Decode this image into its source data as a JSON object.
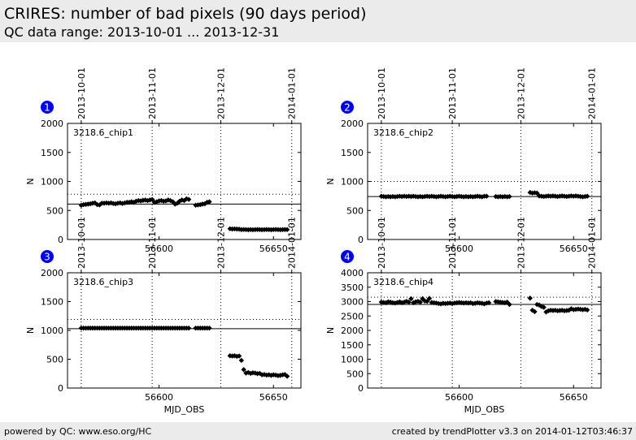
{
  "header": {
    "title": "CRIRES: number of bad pixels (90 days period)",
    "subtitle": "QC data range: 2013-10-01 ... 2013-12-31"
  },
  "footer": {
    "left": "powered by QC: www.eso.org/HC",
    "right": "created by trendPlotter v3.3 on 2014-01-12T03:46:37"
  },
  "colors": {
    "header_bg": "#ebebeb",
    "marker": "#000000",
    "panel_badge": "#0000ff"
  },
  "top_axis": {
    "labels": [
      "2013-10-01",
      "2013-11-01",
      "2013-12-01",
      "2014-01-01"
    ],
    "mjd": [
      56566,
      56597,
      56627,
      56658
    ]
  },
  "chart_data": [
    {
      "type": "scatter",
      "panel": "1",
      "label": "3218.6_chip1",
      "xlabel": "",
      "ylabel": "N",
      "xlim": [
        56560,
        56662
      ],
      "ylim": [
        0,
        2000
      ],
      "yticks": [
        0,
        500,
        1000,
        1500,
        2000
      ],
      "xticks": [
        56600,
        56650
      ],
      "reference_line": 610,
      "threshold_line": 780,
      "date_lines": [
        56566,
        56597,
        56627,
        56658
      ],
      "points": [
        [
          56566,
          590
        ],
        [
          56567,
          600
        ],
        [
          56568,
          605
        ],
        [
          56569,
          610
        ],
        [
          56570,
          615
        ],
        [
          56571,
          625
        ],
        [
          56572,
          630
        ],
        [
          56573,
          600
        ],
        [
          56574,
          595
        ],
        [
          56575,
          625
        ],
        [
          56576,
          625
        ],
        [
          56577,
          630
        ],
        [
          56578,
          625
        ],
        [
          56579,
          630
        ],
        [
          56580,
          620
        ],
        [
          56581,
          615
        ],
        [
          56582,
          625
        ],
        [
          56583,
          630
        ],
        [
          56584,
          620
        ],
        [
          56585,
          630
        ],
        [
          56586,
          640
        ],
        [
          56587,
          640
        ],
        [
          56588,
          650
        ],
        [
          56589,
          640
        ],
        [
          56590,
          660
        ],
        [
          56591,
          670
        ],
        [
          56592,
          665
        ],
        [
          56593,
          675
        ],
        [
          56594,
          680
        ],
        [
          56595,
          670
        ],
        [
          56596,
          680
        ],
        [
          56597,
          690
        ],
        [
          56598,
          640
        ],
        [
          56599,
          650
        ],
        [
          56600,
          665
        ],
        [
          56601,
          670
        ],
        [
          56602,
          660
        ],
        [
          56603,
          665
        ],
        [
          56604,
          680
        ],
        [
          56605,
          670
        ],
        [
          56606,
          650
        ],
        [
          56607,
          610
        ],
        [
          56608,
          625
        ],
        [
          56609,
          660
        ],
        [
          56610,
          680
        ],
        [
          56611,
          670
        ],
        [
          56612,
          700
        ],
        [
          56613,
          690
        ],
        [
          56616,
          590
        ],
        [
          56617,
          595
        ],
        [
          56618,
          600
        ],
        [
          56619,
          610
        ],
        [
          56620,
          615
        ],
        [
          56621,
          640
        ],
        [
          56622,
          650
        ],
        [
          56631,
          185
        ],
        [
          56632,
          180
        ],
        [
          56633,
          182
        ],
        [
          56634,
          180
        ],
        [
          56635,
          178
        ],
        [
          56636,
          170
        ],
        [
          56637,
          172
        ],
        [
          56638,
          170
        ],
        [
          56639,
          168
        ],
        [
          56640,
          170
        ],
        [
          56641,
          168
        ],
        [
          56642,
          170
        ],
        [
          56643,
          172
        ],
        [
          56644,
          170
        ],
        [
          56645,
          168
        ],
        [
          56646,
          170
        ],
        [
          56647,
          172
        ],
        [
          56648,
          170
        ],
        [
          56649,
          168
        ],
        [
          56650,
          170
        ],
        [
          56651,
          172
        ],
        [
          56652,
          170
        ],
        [
          56653,
          168
        ],
        [
          56654,
          170
        ],
        [
          56655,
          172
        ],
        [
          56656,
          170
        ]
      ]
    },
    {
      "type": "scatter",
      "panel": "2",
      "label": "3218.6_chip2",
      "xlabel": "",
      "ylabel": "N",
      "xlim": [
        56560,
        56662
      ],
      "ylim": [
        0,
        2000
      ],
      "yticks": [
        0,
        500,
        1000,
        1500,
        2000
      ],
      "xticks": [
        56600,
        56650
      ],
      "reference_line": 740,
      "threshold_line": 1000,
      "date_lines": [
        56566,
        56597,
        56627,
        56658
      ],
      "points": [
        [
          56566,
          745
        ],
        [
          56567,
          740
        ],
        [
          56568,
          735
        ],
        [
          56569,
          740
        ],
        [
          56570,
          735
        ],
        [
          56571,
          740
        ],
        [
          56572,
          735
        ],
        [
          56573,
          740
        ],
        [
          56574,
          745
        ],
        [
          56575,
          740
        ],
        [
          56576,
          745
        ],
        [
          56577,
          740
        ],
        [
          56578,
          745
        ],
        [
          56579,
          740
        ],
        [
          56580,
          745
        ],
        [
          56581,
          740
        ],
        [
          56582,
          735
        ],
        [
          56583,
          740
        ],
        [
          56584,
          735
        ],
        [
          56585,
          740
        ],
        [
          56586,
          745
        ],
        [
          56587,
          740
        ],
        [
          56588,
          745
        ],
        [
          56589,
          740
        ],
        [
          56590,
          735
        ],
        [
          56591,
          740
        ],
        [
          56592,
          745
        ],
        [
          56593,
          740
        ],
        [
          56594,
          735
        ],
        [
          56595,
          740
        ],
        [
          56596,
          745
        ],
        [
          56597,
          740
        ],
        [
          56598,
          735
        ],
        [
          56599,
          740
        ],
        [
          56600,
          745
        ],
        [
          56601,
          740
        ],
        [
          56602,
          735
        ],
        [
          56603,
          740
        ],
        [
          56604,
          735
        ],
        [
          56605,
          740
        ],
        [
          56606,
          735
        ],
        [
          56607,
          740
        ],
        [
          56608,
          745
        ],
        [
          56609,
          740
        ],
        [
          56610,
          735
        ],
        [
          56611,
          745
        ],
        [
          56612,
          745
        ],
        [
          56616,
          740
        ],
        [
          56617,
          735
        ],
        [
          56618,
          740
        ],
        [
          56619,
          735
        ],
        [
          56620,
          740
        ],
        [
          56621,
          735
        ],
        [
          56622,
          740
        ],
        [
          56631,
          810
        ],
        [
          56632,
          800
        ],
        [
          56633,
          805
        ],
        [
          56634,
          800
        ],
        [
          56635,
          750
        ],
        [
          56636,
          745
        ],
        [
          56637,
          740
        ],
        [
          56638,
          745
        ],
        [
          56639,
          750
        ],
        [
          56640,
          745
        ],
        [
          56641,
          750
        ],
        [
          56642,
          745
        ],
        [
          56643,
          740
        ],
        [
          56644,
          745
        ],
        [
          56645,
          750
        ],
        [
          56646,
          745
        ],
        [
          56647,
          740
        ],
        [
          56648,
          745
        ],
        [
          56649,
          750
        ],
        [
          56650,
          745
        ],
        [
          56651,
          750
        ],
        [
          56652,
          745
        ],
        [
          56653,
          740
        ],
        [
          56654,
          735
        ],
        [
          56655,
          740
        ],
        [
          56656,
          745
        ]
      ]
    },
    {
      "type": "scatter",
      "panel": "3",
      "label": "3218.6_chip3",
      "xlabel": "MJD_OBS",
      "ylabel": "N",
      "xlim": [
        56560,
        56662
      ],
      "ylim": [
        0,
        2000
      ],
      "yticks": [
        0,
        500,
        1000,
        1500,
        2000
      ],
      "xticks": [
        56600,
        56650
      ],
      "reference_line": 1030,
      "threshold_line": 1190,
      "date_lines": [
        56566,
        56597,
        56627,
        56658
      ],
      "points": [
        [
          56566,
          1040
        ],
        [
          56567,
          1040
        ],
        [
          56568,
          1040
        ],
        [
          56569,
          1040
        ],
        [
          56570,
          1040
        ],
        [
          56571,
          1040
        ],
        [
          56572,
          1040
        ],
        [
          56573,
          1040
        ],
        [
          56574,
          1040
        ],
        [
          56575,
          1040
        ],
        [
          56576,
          1040
        ],
        [
          56577,
          1040
        ],
        [
          56578,
          1040
        ],
        [
          56579,
          1040
        ],
        [
          56580,
          1040
        ],
        [
          56581,
          1040
        ],
        [
          56582,
          1040
        ],
        [
          56583,
          1040
        ],
        [
          56584,
          1040
        ],
        [
          56585,
          1040
        ],
        [
          56586,
          1040
        ],
        [
          56587,
          1040
        ],
        [
          56588,
          1040
        ],
        [
          56589,
          1040
        ],
        [
          56590,
          1040
        ],
        [
          56591,
          1040
        ],
        [
          56592,
          1040
        ],
        [
          56593,
          1040
        ],
        [
          56594,
          1040
        ],
        [
          56595,
          1040
        ],
        [
          56596,
          1040
        ],
        [
          56597,
          1040
        ],
        [
          56598,
          1040
        ],
        [
          56599,
          1040
        ],
        [
          56600,
          1040
        ],
        [
          56601,
          1040
        ],
        [
          56602,
          1040
        ],
        [
          56603,
          1040
        ],
        [
          56604,
          1040
        ],
        [
          56605,
          1040
        ],
        [
          56606,
          1040
        ],
        [
          56607,
          1040
        ],
        [
          56608,
          1040
        ],
        [
          56609,
          1040
        ],
        [
          56610,
          1040
        ],
        [
          56611,
          1040
        ],
        [
          56612,
          1040
        ],
        [
          56613,
          1040
        ],
        [
          56616,
          1040
        ],
        [
          56617,
          1040
        ],
        [
          56618,
          1040
        ],
        [
          56619,
          1040
        ],
        [
          56620,
          1040
        ],
        [
          56621,
          1040
        ],
        [
          56622,
          1040
        ],
        [
          56631,
          560
        ],
        [
          56632,
          555
        ],
        [
          56633,
          560
        ],
        [
          56634,
          550
        ],
        [
          56635,
          555
        ],
        [
          56636,
          480
        ],
        [
          56637,
          320
        ],
        [
          56638,
          260
        ],
        [
          56639,
          270
        ],
        [
          56640,
          255
        ],
        [
          56641,
          265
        ],
        [
          56642,
          260
        ],
        [
          56643,
          250
        ],
        [
          56644,
          255
        ],
        [
          56645,
          230
        ],
        [
          56646,
          235
        ],
        [
          56647,
          225
        ],
        [
          56648,
          230
        ],
        [
          56649,
          220
        ],
        [
          56650,
          230
        ],
        [
          56651,
          225
        ],
        [
          56652,
          215
        ],
        [
          56653,
          220
        ],
        [
          56654,
          230
        ],
        [
          56655,
          235
        ],
        [
          56656,
          205
        ]
      ]
    },
    {
      "type": "scatter",
      "panel": "4",
      "label": "3218.6_chip4",
      "xlabel": "MJD_OBS",
      "ylabel": "N",
      "xlim": [
        56560,
        56662
      ],
      "ylim": [
        0,
        4000
      ],
      "yticks": [
        0,
        500,
        1000,
        1500,
        2000,
        2500,
        3000,
        3500,
        4000
      ],
      "xticks": [
        56600,
        56650
      ],
      "reference_line": 2900,
      "threshold_line": 3150,
      "date_lines": [
        56566,
        56597,
        56627,
        56658
      ],
      "points": [
        [
          56566,
          2980
        ],
        [
          56567,
          2970
        ],
        [
          56568,
          2960
        ],
        [
          56569,
          2990
        ],
        [
          56570,
          2980
        ],
        [
          56571,
          2960
        ],
        [
          56572,
          2950
        ],
        [
          56573,
          2970
        ],
        [
          56574,
          2990
        ],
        [
          56575,
          2960
        ],
        [
          56576,
          2980
        ],
        [
          56577,
          3010
        ],
        [
          56578,
          2980
        ],
        [
          56579,
          3100
        ],
        [
          56580,
          2960
        ],
        [
          56581,
          2990
        ],
        [
          56582,
          3010
        ],
        [
          56583,
          2980
        ],
        [
          56584,
          3100
        ],
        [
          56585,
          3020
        ],
        [
          56586,
          3010
        ],
        [
          56587,
          3110
        ],
        [
          56588,
          2970
        ],
        [
          56589,
          2960
        ],
        [
          56590,
          2950
        ],
        [
          56591,
          2930
        ],
        [
          56592,
          2920
        ],
        [
          56593,
          2940
        ],
        [
          56594,
          2930
        ],
        [
          56595,
          2940
        ],
        [
          56596,
          2950
        ],
        [
          56597,
          2930
        ],
        [
          56598,
          2950
        ],
        [
          56599,
          2960
        ],
        [
          56600,
          2970
        ],
        [
          56601,
          2960
        ],
        [
          56602,
          2950
        ],
        [
          56603,
          2960
        ],
        [
          56604,
          2950
        ],
        [
          56605,
          2960
        ],
        [
          56606,
          2930
        ],
        [
          56607,
          2940
        ],
        [
          56608,
          2960
        ],
        [
          56609,
          2950
        ],
        [
          56610,
          2940
        ],
        [
          56611,
          2920
        ],
        [
          56612,
          2950
        ],
        [
          56613,
          2960
        ],
        [
          56616,
          3000
        ],
        [
          56617,
          2990
        ],
        [
          56618,
          2980
        ],
        [
          56619,
          2970
        ],
        [
          56620,
          2960
        ],
        [
          56621,
          2980
        ],
        [
          56622,
          2900
        ],
        [
          56631,
          3120
        ],
        [
          56632,
          2700
        ],
        [
          56633,
          2650
        ],
        [
          56634,
          2900
        ],
        [
          56635,
          2880
        ],
        [
          56636,
          2830
        ],
        [
          56637,
          2800
        ],
        [
          56638,
          2640
        ],
        [
          56639,
          2680
        ],
        [
          56640,
          2700
        ],
        [
          56641,
          2690
        ],
        [
          56642,
          2700
        ],
        [
          56643,
          2680
        ],
        [
          56644,
          2690
        ],
        [
          56645,
          2700
        ],
        [
          56646,
          2680
        ],
        [
          56647,
          2690
        ],
        [
          56648,
          2700
        ],
        [
          56649,
          2750
        ],
        [
          56650,
          2720
        ],
        [
          56651,
          2730
        ],
        [
          56652,
          2740
        ],
        [
          56653,
          2730
        ],
        [
          56654,
          2720
        ],
        [
          56655,
          2730
        ],
        [
          56656,
          2710
        ]
      ]
    }
  ]
}
